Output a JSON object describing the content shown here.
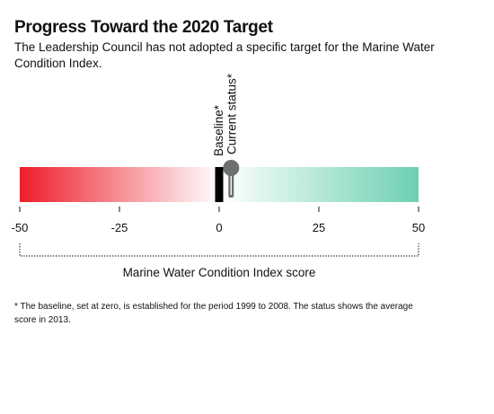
{
  "title": "Progress Toward the 2020 Target",
  "subtitle": "The Leadership Council has not adopted a specific target for the Marine Water Condition Index.",
  "footnote": "* The baseline, set at zero, is established for the period 1999 to 2008. The status shows the average score in 2013.",
  "colors": {
    "negative": "#ee1d2b",
    "positive": "#6dd0b2",
    "neutral": "#ffffff",
    "baseline": "#000000",
    "status_marker": "#6d6f71"
  },
  "chart_data": {
    "type": "gauge",
    "xlabel": "Marine Water Condition Index score",
    "xlim": [
      -50,
      50
    ],
    "ticks": [
      -50,
      -25,
      0,
      25,
      50
    ],
    "tick_labels": [
      "-50",
      "-25",
      "0",
      "25",
      "50"
    ],
    "baseline": {
      "label": "Baseline*",
      "value": 0
    },
    "current_status": {
      "label": "Current status*",
      "value": 3
    }
  }
}
